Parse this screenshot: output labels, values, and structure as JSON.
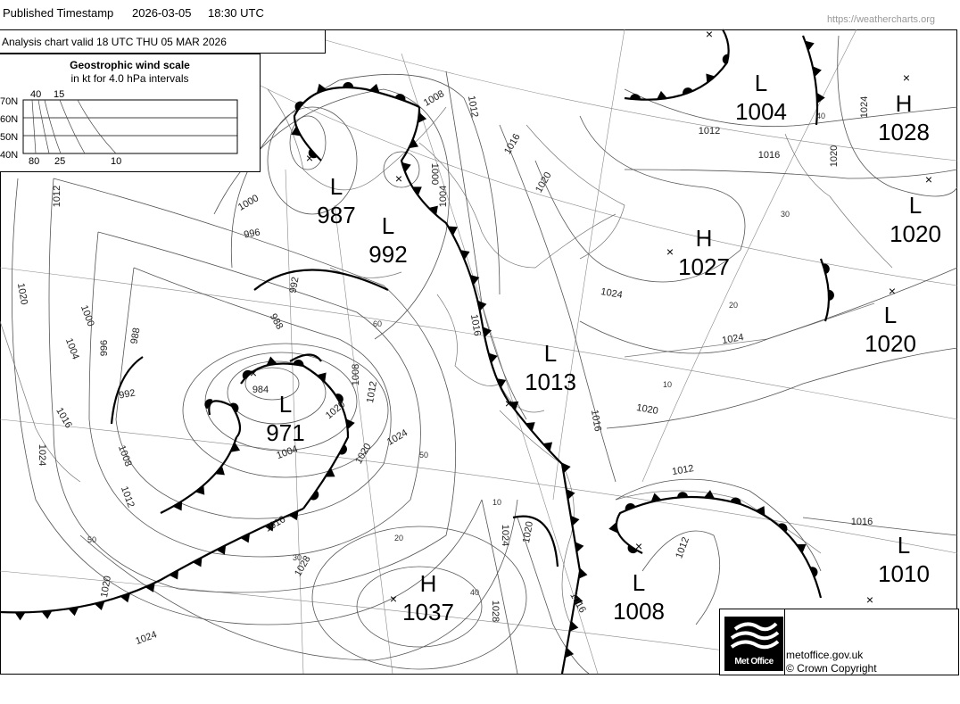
{
  "header": {
    "label": "Published Timestamp",
    "date": "2026-03-05",
    "time": "18:30  UTC",
    "source": "https://weathercharts.org"
  },
  "chart_title": "Analysis chart  valid 18 UTC THU 05  MAR 2026",
  "wind_scale": {
    "title": "Geostrophic wind scale",
    "subtitle": "in kt for 4.0 hPa intervals",
    "latitudes": [
      "70N",
      "60N",
      "50N",
      "40N"
    ],
    "top_labels": [
      "40",
      "15"
    ],
    "bottom_labels": [
      "80",
      "25",
      "10"
    ]
  },
  "pressure_centres": [
    {
      "type": "L",
      "value": "1004"
    },
    {
      "type": "H",
      "value": "1028"
    },
    {
      "type": "L",
      "value": "987"
    },
    {
      "type": "L",
      "value": "992"
    },
    {
      "type": "H",
      "value": "1027"
    },
    {
      "type": "L",
      "value": "1020"
    },
    {
      "type": "L",
      "value": "1020"
    },
    {
      "type": "L",
      "value": "1013"
    },
    {
      "type": "L",
      "value": "971"
    },
    {
      "type": "H",
      "value": "1037"
    },
    {
      "type": "L",
      "value": "1008"
    },
    {
      "type": "L",
      "value": "1010"
    }
  ],
  "isobar_labels": [
    "1008",
    "1012",
    "1016",
    "1020",
    "1012",
    "1016",
    "1020",
    "1024",
    "1000",
    "996",
    "1012",
    "1020",
    "1000",
    "1004",
    "996",
    "988",
    "992",
    "988",
    "992",
    "984",
    "1000",
    "1004",
    "1016",
    "1008",
    "1012",
    "1020",
    "1004",
    "1020",
    "1024",
    "1016",
    "1024",
    "1008",
    "1012",
    "1016",
    "1028",
    "1020",
    "1024",
    "1024",
    "1024",
    "1020",
    "1016",
    "1012",
    "1012",
    "1016",
    "1024",
    "1028",
    "1016",
    "1020"
  ],
  "latitude_labels": [
    "60",
    "50",
    "40",
    "30",
    "20",
    "50",
    "10",
    "10",
    "20",
    "30",
    "40",
    "60"
  ],
  "footer": {
    "logo_text": "Met Office",
    "site": "metoffice.gov.uk",
    "copyright": "© Crown Copyright"
  }
}
